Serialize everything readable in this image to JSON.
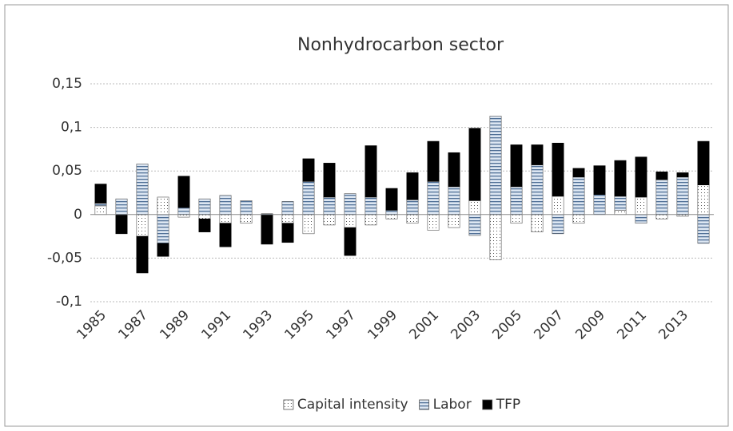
{
  "chart_data": {
    "type": "stacked_bar",
    "title": "Nonhydrocarbon sector",
    "categories": [
      "1985",
      null,
      "1987",
      null,
      "1989",
      null,
      "1991",
      null,
      "1993",
      null,
      "1995",
      null,
      "1997",
      null,
      "1999",
      null,
      "2001",
      null,
      "2003",
      null,
      "2005",
      null,
      "2007",
      null,
      "2009",
      null,
      "2011",
      null,
      "2013",
      null
    ],
    "series": [
      {
        "name": "Capital intensity",
        "color": "#ffffff",
        "pattern": "dots",
        "values": [
          0.01,
          0,
          -0.025,
          0.02,
          -0.003,
          -0.005,
          -0.01,
          -0.01,
          0,
          -0.01,
          -0.022,
          -0.012,
          -0.015,
          -0.012,
          -0.005,
          -0.01,
          -0.018,
          -0.015,
          0.016,
          -0.052,
          -0.01,
          -0.02,
          0.021,
          -0.01,
          0,
          0.005,
          0.02,
          -0.005,
          -0.002,
          0.034
        ]
      },
      {
        "name": "Labor",
        "color": "#dce6f2",
        "pattern": "stripes",
        "values": [
          0.003,
          0.018,
          0.058,
          -0.033,
          0.008,
          0.018,
          0.022,
          0.016,
          0.001,
          0.015,
          0.038,
          0.02,
          0.024,
          0.02,
          0.005,
          0.017,
          0.038,
          0.032,
          -0.024,
          0.113,
          0.032,
          0.057,
          -0.022,
          0.043,
          0.023,
          0.016,
          -0.01,
          0.04,
          0.043,
          -0.033
        ]
      },
      {
        "name": "TFP",
        "color": "#000000",
        "pattern": "solid",
        "values": [
          0.022,
          -0.022,
          -0.042,
          -0.015,
          0.036,
          -0.015,
          -0.027,
          0,
          -0.034,
          -0.022,
          0.026,
          0.039,
          -0.032,
          0.059,
          0.025,
          0.031,
          0.046,
          0.039,
          0.083,
          0,
          0.048,
          0.023,
          0.061,
          0.01,
          0.033,
          0.041,
          0.046,
          0.009,
          0.005,
          0.05
        ]
      }
    ],
    "ylim": [
      -0.1,
      0.15
    ],
    "yticks": [
      {
        "value": -0.1,
        "label": "-0,1"
      },
      {
        "value": -0.05,
        "label": "-0,05"
      },
      0,
      {
        "value": 0.05,
        "label": "0,05"
      },
      {
        "value": 0.1,
        "label": "0,1"
      },
      {
        "value": 0.15,
        "label": "0,15"
      }
    ],
    "grid": true,
    "legend": "bottom"
  }
}
